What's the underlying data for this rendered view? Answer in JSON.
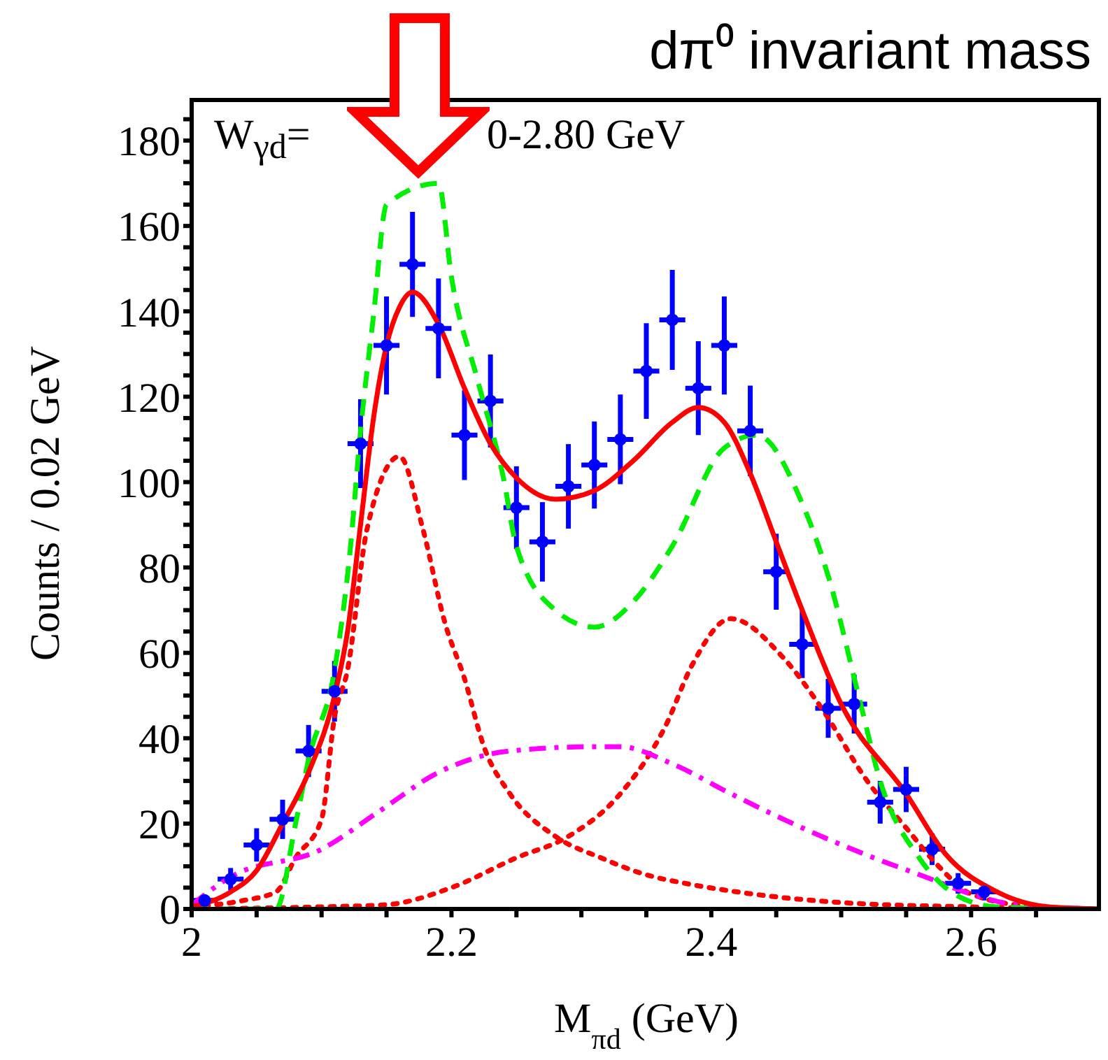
{
  "chart_data": {
    "type": "line",
    "title": "dπ⁰ invariant mass",
    "xlabel": "M$_{πd}$ (GeV)",
    "ylabel": "Counts / 0.02 GeV",
    "annotations": [
      "W$_{γd}$=",
      "0-2.80 GeV"
    ],
    "xlim": [
      2,
      2.7
    ],
    "xticks": [
      2,
      {
        "value": 2.05,
        "label": null
      },
      {
        "value": 2.1,
        "label": null
      },
      {
        "value": 2.15,
        "label": null
      },
      2.2,
      {
        "value": 2.25,
        "label": null
      },
      {
        "value": 2.3,
        "label": null
      },
      {
        "value": 2.35,
        "label": null
      },
      2.4,
      {
        "value": 2.45,
        "label": null
      },
      {
        "value": 2.5,
        "label": null
      },
      {
        "value": 2.55,
        "label": null
      },
      2.6,
      {
        "value": 2.65,
        "label": null
      }
    ],
    "ylim": [
      0,
      190
    ],
    "yticks": [
      0,
      {
        "value": 5,
        "label": null
      },
      {
        "value": 10,
        "label": null
      },
      {
        "value": 15,
        "label": null
      },
      20,
      {
        "value": 25,
        "label": null
      },
      {
        "value": 30,
        "label": null
      },
      {
        "value": 35,
        "label": null
      },
      40,
      {
        "value": 45,
        "label": null
      },
      {
        "value": 50,
        "label": null
      },
      {
        "value": 55,
        "label": null
      },
      60,
      {
        "value": 65,
        "label": null
      },
      {
        "value": 70,
        "label": null
      },
      {
        "value": 75,
        "label": null
      },
      80,
      {
        "value": 85,
        "label": null
      },
      {
        "value": 90,
        "label": null
      },
      {
        "value": 95,
        "label": null
      },
      100,
      {
        "value": 105,
        "label": null
      },
      {
        "value": 110,
        "label": null
      },
      {
        "value": 115,
        "label": null
      },
      120,
      {
        "value": 125,
        "label": null
      },
      {
        "value": 130,
        "label": null
      },
      {
        "value": 135,
        "label": null
      },
      140,
      {
        "value": 145,
        "label": null
      },
      {
        "value": 150,
        "label": null
      },
      {
        "value": 155,
        "label": null
      },
      160,
      {
        "value": 165,
        "label": null
      },
      {
        "value": 170,
        "label": null
      },
      {
        "value": 175,
        "label": null
      },
      180,
      {
        "value": 185,
        "label": null
      }
    ],
    "series": [
      {
        "type": "scatter",
        "marker": "circle",
        "color": "#0000ff",
        "x": [
          2.01,
          2.03,
          2.05,
          2.07,
          2.09,
          2.11,
          2.13,
          2.15,
          2.17,
          2.19,
          2.21,
          2.23,
          2.25,
          2.27,
          2.29,
          2.31,
          2.33,
          2.35,
          2.37,
          2.39,
          2.41,
          2.43,
          2.45,
          2.47,
          2.49,
          2.51,
          2.53,
          2.55,
          2.57,
          2.59,
          2.61
        ],
        "values": [
          2,
          7,
          15,
          21,
          37,
          51,
          109,
          132,
          151,
          136,
          111,
          119,
          94,
          86,
          99,
          104,
          110,
          126,
          138,
          122,
          132,
          112,
          79,
          62,
          47,
          48,
          25,
          28,
          14,
          6,
          4
        ],
        "errors": [
          null,
          2.6,
          3.9,
          4.6,
          6.1,
          7.1,
          10.4,
          11.5,
          12.3,
          11.7,
          10.5,
          10.9,
          9.7,
          9.3,
          9.9,
          10.2,
          10.5,
          11.2,
          11.7,
          11,
          11.5,
          10.6,
          8.9,
          7.9,
          6.9,
          6.9,
          5,
          5.3,
          3.7,
          2.4,
          2
        ],
        "xerrors": [
          0.01,
          0.01,
          0.01,
          0.01,
          0.01,
          0.01,
          0.01,
          0.01,
          0.01,
          0.01,
          0.01,
          0.01,
          0.01,
          0.01,
          0.01,
          0.01,
          0.01,
          0.01,
          0.01,
          0.01,
          0.01,
          0.01,
          0.01,
          0.01,
          0.01,
          0.01,
          0.01,
          0.01,
          0.01,
          0.01,
          0.01
        ]
      },
      {
        "color": "#ff0000",
        "line_style": "dotted",
        "x": [
          2.0,
          2.04,
          2.065,
          2.08,
          2.1,
          2.11,
          2.12,
          2.135,
          2.16,
          2.178,
          2.195,
          2.21,
          2.225,
          2.245,
          2.28,
          2.315,
          2.35,
          2.38,
          2.42,
          2.5,
          2.6,
          2.7
        ],
        "values": [
          0.5,
          2,
          4,
          12,
          21,
          45,
          56,
          89,
          106,
          89,
          67,
          54,
          38,
          27,
          17,
          12,
          8,
          6,
          4,
          1.5,
          0.5,
          0
        ]
      },
      {
        "color": "#ff0000",
        "line_style": "dotted",
        "x": [
          2.0,
          2.1,
          2.15,
          2.2,
          2.25,
          2.29,
          2.33,
          2.365,
          2.385,
          2.415,
          2.455,
          2.485,
          2.52,
          2.55,
          2.575,
          2.6,
          2.65,
          2.7
        ],
        "values": [
          0,
          0.5,
          1,
          5,
          12,
          17,
          27,
          43,
          57,
          68,
          59,
          47,
          30,
          19,
          10,
          3.5,
          0.5,
          0
        ]
      },
      {
        "color": "#ff00ff",
        "line_style": "dashdot",
        "x": [
          2.0,
          2.03,
          2.1,
          2.145,
          2.19,
          2.245,
          2.31,
          2.33,
          2.37,
          2.415,
          2.47,
          2.525,
          2.565,
          2.6,
          2.635,
          2.7
        ],
        "values": [
          1,
          7.5,
          14,
          23,
          32,
          37,
          38,
          38,
          34,
          27,
          19,
          12,
          7.5,
          3.5,
          1,
          0
        ]
      },
      {
        "color": "#00ee00",
        "line_style": "dashed",
        "x": [
          2.0,
          2.065,
          2.08,
          2.09,
          2.11,
          2.122,
          2.13,
          2.14,
          2.15,
          2.17,
          2.19,
          2.2,
          2.22,
          2.24,
          2.25,
          2.28,
          2.31,
          2.34,
          2.37,
          2.41,
          2.435,
          2.47,
          2.49,
          2.515,
          2.53,
          2.56,
          2.59,
          2.62,
          2.7
        ],
        "values": [
          0,
          0,
          20,
          35,
          56,
          84,
          112,
          139,
          165,
          null,
          170,
          148,
          124,
          101,
          85,
          70,
          66,
          72,
          85,
          108,
          111,
          95,
          78,
          48,
          30,
          12,
          3,
          0.5,
          0
        ]
      },
      {
        "color": "#ff0000",
        "line_style": "solid",
        "x": [
          2.0,
          2.03,
          2.05,
          2.07,
          2.09,
          2.11,
          2.12,
          2.13,
          2.14,
          2.15,
          2.16,
          2.17,
          2.19,
          2.21,
          2.23,
          2.25,
          2.28,
          2.31,
          2.34,
          2.37,
          2.39,
          2.41,
          2.43,
          2.45,
          2.47,
          2.5,
          2.55,
          2.58,
          2.62,
          2.66,
          2.7
        ],
        "values": [
          0.5,
          4,
          9,
          20,
          32,
          50,
          65,
          90,
          115,
          132,
          141,
          144.5,
          137,
          122,
          109,
          101,
          96,
          98,
          105,
          114,
          117.5,
          114,
          102,
          86,
          70,
          48,
          27,
          13,
          4,
          0.5,
          0
        ]
      }
    ]
  }
}
